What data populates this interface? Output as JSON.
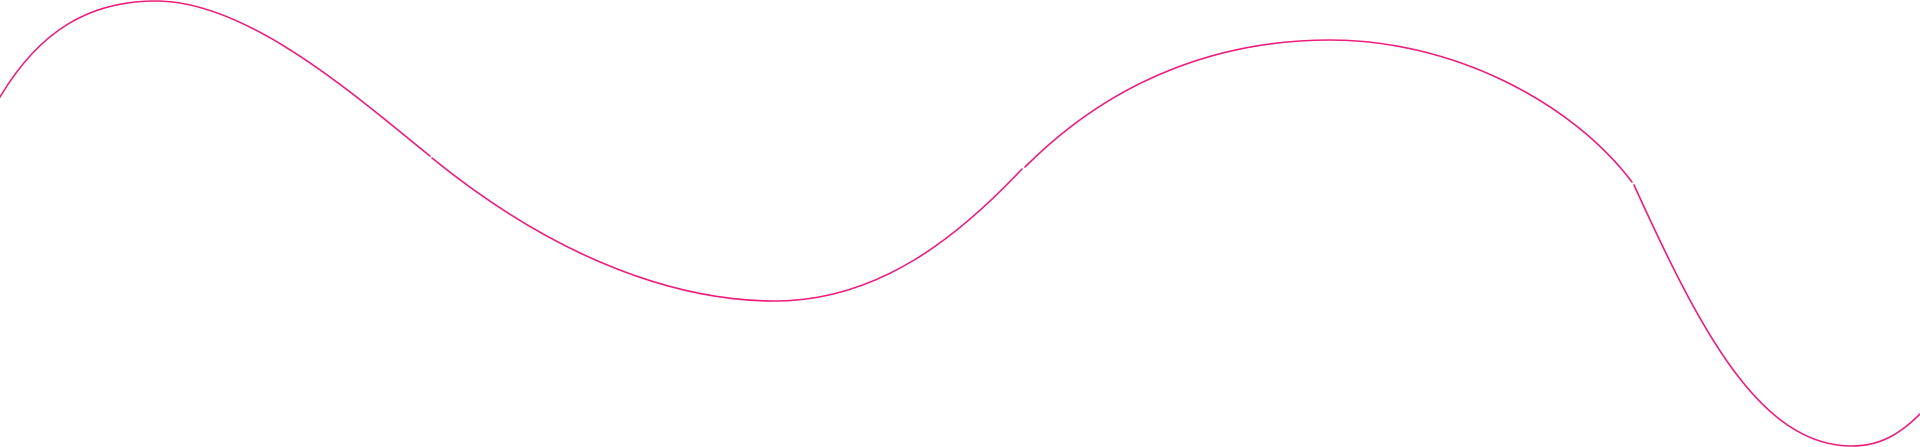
{
  "decoration": {
    "stroke_color": "#ec1c7c",
    "background_color": "#ffffff"
  }
}
